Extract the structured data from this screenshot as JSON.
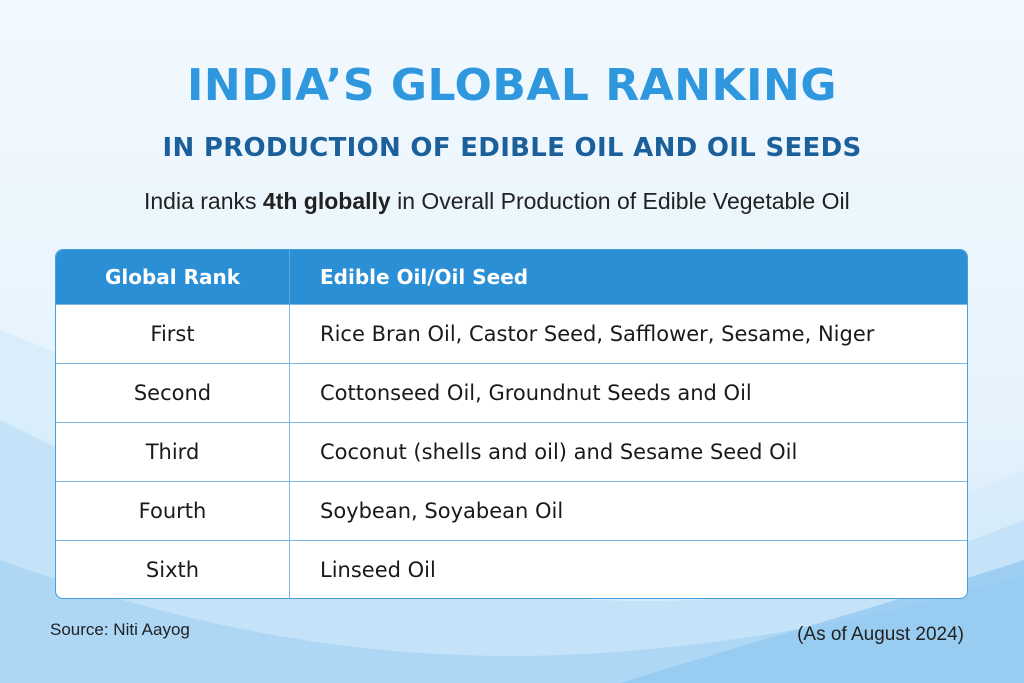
{
  "header": {
    "title": "INDIA’S GLOBAL RANKING",
    "subtitle": "IN PRODUCTION OF EDIBLE OIL AND OIL SEEDS",
    "tagline_prefix": "India ranks ",
    "tagline_bold": "4th globally",
    "tagline_suffix": " in Overall Production of Edible Vegetable Oil"
  },
  "table": {
    "headers": [
      "Global Rank",
      "Edible Oil/Oil Seed"
    ],
    "rows": [
      {
        "rank": "First",
        "items": "Rice Bran Oil, Castor Seed, Safflower, Sesame, Niger"
      },
      {
        "rank": "Second",
        "items": "Cottonseed Oil, Groundnut Seeds and Oil"
      },
      {
        "rank": "Third",
        "items": "Coconut (shells and oil) and Sesame Seed Oil"
      },
      {
        "rank": "Fourth",
        "items": "Soybean, Soyabean Oil"
      },
      {
        "rank": "Sixth",
        "items": "Linseed Oil"
      }
    ]
  },
  "footer": {
    "source": "Source: Niti Aayog",
    "as_of": "(As of August 2024)"
  },
  "colors": {
    "title": "#2e97de",
    "subtitle": "#1b5f9b",
    "table_header": "#2b8fd6",
    "table_border": "#4a9fda"
  }
}
